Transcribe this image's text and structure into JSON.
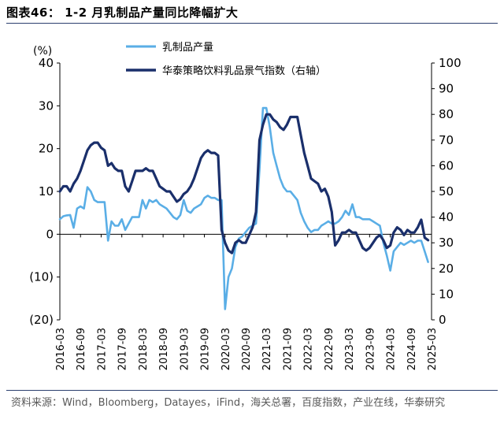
{
  "figure": {
    "title": "图表46： 1-2 月乳制品产量同比降幅扩大",
    "source": "资料来源：Wind，Bloomberg，Datayes，iFind，海关总署，百度指数，产业在线，华泰研究"
  },
  "colors": {
    "series_light": "#5aaee6",
    "series_dark": "#1a2f6b",
    "rule": "#2b3f6e"
  },
  "chart_data": {
    "type": "line",
    "left_axis": {
      "unit": "(%)",
      "ylim": [
        -20,
        40
      ],
      "ticks": [
        "40",
        "30",
        "20",
        "10",
        "0",
        "(10)",
        "(20)"
      ]
    },
    "right_axis": {
      "ylim": [
        0,
        100
      ],
      "ticks": [
        "100",
        "90",
        "80",
        "70",
        "60",
        "50",
        "40",
        "30",
        "20",
        "10",
        "0"
      ]
    },
    "x_ticks": [
      "2016-03",
      "2016-09",
      "2017-03",
      "2017-09",
      "2018-03",
      "2018-09",
      "2019-03",
      "2019-09",
      "2020-03",
      "2020-09",
      "2021-03",
      "2021-09",
      "2022-03",
      "2022-09",
      "2023-03",
      "2023-09",
      "2024-03",
      "2024-09",
      "2025-03"
    ],
    "x_start": "2016-03",
    "x_end": "2025-03",
    "grid": false,
    "legend_position": "top",
    "series": [
      {
        "name": "乳制品产量",
        "axis": "left",
        "points": [
          [
            "2016-03",
            3.5
          ],
          [
            "2016-04",
            4.2
          ],
          [
            "2016-05",
            4.4
          ],
          [
            "2016-06",
            4.5
          ],
          [
            "2016-07",
            1.5
          ],
          [
            "2016-08",
            6.0
          ],
          [
            "2016-09",
            6.5
          ],
          [
            "2016-10",
            6.0
          ],
          [
            "2016-11",
            11.0
          ],
          [
            "2016-12",
            10.0
          ],
          [
            "2017-01",
            8.0
          ],
          [
            "2017-02",
            7.5
          ],
          [
            "2017-03",
            7.5
          ],
          [
            "2017-04",
            7.5
          ],
          [
            "2017-05",
            -1.5
          ],
          [
            "2017-06",
            3.0
          ],
          [
            "2017-07",
            2.0
          ],
          [
            "2017-08",
            2.0
          ],
          [
            "2017-09",
            3.5
          ],
          [
            "2017-10",
            1.0
          ],
          [
            "2017-11",
            2.5
          ],
          [
            "2017-12",
            4.0
          ],
          [
            "2018-01",
            4.0
          ],
          [
            "2018-02",
            4.0
          ],
          [
            "2018-03",
            8.0
          ],
          [
            "2018-04",
            6.0
          ],
          [
            "2018-05",
            8.0
          ],
          [
            "2018-06",
            7.5
          ],
          [
            "2018-07",
            8.0
          ],
          [
            "2018-08",
            7.0
          ],
          [
            "2018-09",
            6.5
          ],
          [
            "2018-10",
            6.0
          ],
          [
            "2018-11",
            5.0
          ],
          [
            "2018-12",
            4.0
          ],
          [
            "2019-01",
            3.5
          ],
          [
            "2019-02",
            4.5
          ],
          [
            "2019-03",
            8.0
          ],
          [
            "2019-04",
            5.5
          ],
          [
            "2019-05",
            5.0
          ],
          [
            "2019-06",
            6.0
          ],
          [
            "2019-07",
            6.5
          ],
          [
            "2019-08",
            7.0
          ],
          [
            "2019-09",
            8.5
          ],
          [
            "2019-10",
            9.0
          ],
          [
            "2019-11",
            8.5
          ],
          [
            "2019-12",
            8.5
          ],
          [
            "2020-01",
            8.0
          ],
          [
            "2020-02",
            8.0
          ],
          [
            "2020-03",
            -17.5
          ],
          [
            "2020-04",
            -10.0
          ],
          [
            "2020-05",
            -8.0
          ],
          [
            "2020-06",
            -3.0
          ],
          [
            "2020-07",
            -1.0
          ],
          [
            "2020-08",
            -0.5
          ],
          [
            "2020-09",
            0.5
          ],
          [
            "2020-10",
            1.5
          ],
          [
            "2020-11",
            2.0
          ],
          [
            "2020-12",
            2.5
          ],
          [
            "2021-01",
            15.0
          ],
          [
            "2021-02",
            29.5
          ],
          [
            "2021-03",
            29.5
          ],
          [
            "2021-04",
            25.0
          ],
          [
            "2021-05",
            19.0
          ],
          [
            "2021-06",
            16.0
          ],
          [
            "2021-07",
            13.0
          ],
          [
            "2021-08",
            11.0
          ],
          [
            "2021-09",
            10.0
          ],
          [
            "2021-10",
            10.0
          ],
          [
            "2021-11",
            9.0
          ],
          [
            "2021-12",
            8.0
          ],
          [
            "2022-01",
            5.0
          ],
          [
            "2022-02",
            3.0
          ],
          [
            "2022-03",
            1.5
          ],
          [
            "2022-04",
            0.5
          ],
          [
            "2022-05",
            1.0
          ],
          [
            "2022-06",
            1.0
          ],
          [
            "2022-07",
            2.0
          ],
          [
            "2022-08",
            2.5
          ],
          [
            "2022-09",
            3.0
          ],
          [
            "2022-10",
            2.5
          ],
          [
            "2022-11",
            2.5
          ],
          [
            "2022-12",
            3.0
          ],
          [
            "2023-01",
            4.0
          ],
          [
            "2023-02",
            5.5
          ],
          [
            "2023-03",
            4.5
          ],
          [
            "2023-04",
            7.0
          ],
          [
            "2023-05",
            4.0
          ],
          [
            "2023-06",
            4.0
          ],
          [
            "2023-07",
            3.5
          ],
          [
            "2023-08",
            3.5
          ],
          [
            "2023-09",
            3.5
          ],
          [
            "2023-10",
            3.0
          ],
          [
            "2023-11",
            2.5
          ],
          [
            "2023-12",
            2.0
          ],
          [
            "2024-01",
            -2.0
          ],
          [
            "2024-02",
            -5.0
          ],
          [
            "2024-03",
            -8.5
          ],
          [
            "2024-04",
            -4.0
          ],
          [
            "2024-05",
            -3.0
          ],
          [
            "2024-06",
            -2.0
          ],
          [
            "2024-07",
            -2.5
          ],
          [
            "2024-08",
            -2.0
          ],
          [
            "2024-09",
            -1.5
          ],
          [
            "2024-10",
            -2.0
          ],
          [
            "2024-11",
            -1.5
          ],
          [
            "2024-12",
            -1.5
          ],
          [
            "2025-01",
            -4.0
          ],
          [
            "2025-02",
            -6.5
          ]
        ]
      },
      {
        "name": "华泰策略饮料乳品景气指数（右轴）",
        "axis": "right",
        "points": [
          [
            "2016-03",
            50.0
          ],
          [
            "2016-04",
            52.0
          ],
          [
            "2016-05",
            52.0
          ],
          [
            "2016-06",
            50.0
          ],
          [
            "2016-07",
            53.0
          ],
          [
            "2016-08",
            55.0
          ],
          [
            "2016-09",
            58.0
          ],
          [
            "2016-10",
            62.0
          ],
          [
            "2016-11",
            66.0
          ],
          [
            "2016-12",
            68.0
          ],
          [
            "2017-01",
            69.0
          ],
          [
            "2017-02",
            69.0
          ],
          [
            "2017-03",
            67.0
          ],
          [
            "2017-04",
            66.0
          ],
          [
            "2017-05",
            60.0
          ],
          [
            "2017-06",
            61.0
          ],
          [
            "2017-07",
            59.0
          ],
          [
            "2017-08",
            58.0
          ],
          [
            "2017-09",
            58.0
          ],
          [
            "2017-10",
            52.0
          ],
          [
            "2017-11",
            50.0
          ],
          [
            "2017-12",
            54.0
          ],
          [
            "2018-01",
            58.0
          ],
          [
            "2018-02",
            58.0
          ],
          [
            "2018-03",
            58.0
          ],
          [
            "2018-04",
            59.0
          ],
          [
            "2018-05",
            58.0
          ],
          [
            "2018-06",
            58.0
          ],
          [
            "2018-07",
            55.0
          ],
          [
            "2018-08",
            52.0
          ],
          [
            "2018-09",
            51.0
          ],
          [
            "2018-10",
            50.0
          ],
          [
            "2018-11",
            50.0
          ],
          [
            "2018-12",
            48.0
          ],
          [
            "2019-01",
            46.0
          ],
          [
            "2019-02",
            47.0
          ],
          [
            "2019-03",
            49.0
          ],
          [
            "2019-04",
            50.0
          ],
          [
            "2019-05",
            52.0
          ],
          [
            "2019-06",
            55.0
          ],
          [
            "2019-07",
            59.0
          ],
          [
            "2019-08",
            63.0
          ],
          [
            "2019-09",
            65.0
          ],
          [
            "2019-10",
            66.0
          ],
          [
            "2019-11",
            65.0
          ],
          [
            "2019-12",
            65.0
          ],
          [
            "2020-01",
            64.0
          ],
          [
            "2020-02",
            35.0
          ],
          [
            "2020-03",
            30.0
          ],
          [
            "2020-04",
            27.0
          ],
          [
            "2020-05",
            26.0
          ],
          [
            "2020-06",
            30.0
          ],
          [
            "2020-07",
            31.0
          ],
          [
            "2020-08",
            30.0
          ],
          [
            "2020-09",
            30.0
          ],
          [
            "2020-10",
            33.0
          ],
          [
            "2020-11",
            36.0
          ],
          [
            "2020-12",
            42.0
          ],
          [
            "2021-01",
            70.0
          ],
          [
            "2021-02",
            76.0
          ],
          [
            "2021-03",
            80.0
          ],
          [
            "2021-04",
            80.0
          ],
          [
            "2021-05",
            78.0
          ],
          [
            "2021-06",
            77.0
          ],
          [
            "2021-07",
            75.0
          ],
          [
            "2021-08",
            74.0
          ],
          [
            "2021-09",
            76.0
          ],
          [
            "2021-10",
            79.0
          ],
          [
            "2021-11",
            79.0
          ],
          [
            "2021-12",
            79.0
          ],
          [
            "2022-01",
            72.0
          ],
          [
            "2022-02",
            65.0
          ],
          [
            "2022-03",
            60.0
          ],
          [
            "2022-04",
            55.0
          ],
          [
            "2022-05",
            54.0
          ],
          [
            "2022-06",
            53.0
          ],
          [
            "2022-07",
            50.0
          ],
          [
            "2022-08",
            51.0
          ],
          [
            "2022-09",
            48.0
          ],
          [
            "2022-10",
            42.0
          ],
          [
            "2022-11",
            29.0
          ],
          [
            "2022-12",
            31.0
          ],
          [
            "2023-01",
            34.0
          ],
          [
            "2023-02",
            34.0
          ],
          [
            "2023-03",
            35.0
          ],
          [
            "2023-04",
            34.0
          ],
          [
            "2023-05",
            34.0
          ],
          [
            "2023-06",
            31.0
          ],
          [
            "2023-07",
            28.0
          ],
          [
            "2023-08",
            27.0
          ],
          [
            "2023-09",
            28.0
          ],
          [
            "2023-10",
            30.0
          ],
          [
            "2023-11",
            32.0
          ],
          [
            "2023-12",
            33.0
          ],
          [
            "2024-01",
            31.0
          ],
          [
            "2024-02",
            28.0
          ],
          [
            "2024-03",
            29.0
          ],
          [
            "2024-04",
            34.0
          ],
          [
            "2024-05",
            36.0
          ],
          [
            "2024-06",
            35.0
          ],
          [
            "2024-07",
            33.0
          ],
          [
            "2024-08",
            35.0
          ],
          [
            "2024-09",
            34.0
          ],
          [
            "2024-10",
            34.0
          ],
          [
            "2024-11",
            36.0
          ],
          [
            "2024-12",
            39.0
          ],
          [
            "2025-01",
            32.0
          ],
          [
            "2025-02",
            31.0
          ]
        ]
      }
    ]
  }
}
